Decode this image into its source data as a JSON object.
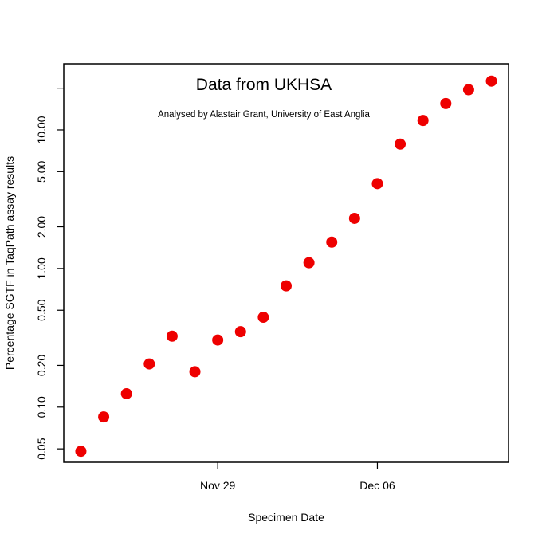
{
  "chart_data": {
    "type": "scatter",
    "title": "Data from UKHSA",
    "subtitle": "Analysed by Alastair Grant, University of East Anglia",
    "xlabel": "Specimen Date",
    "ylabel": "Percentage SGTF in TaqPath assay results",
    "y_scale": "log",
    "ylim": [
      0.04,
      30
    ],
    "xlim": [
      -0.75,
      18.75
    ],
    "x_ticks": [
      {
        "label": "Nov 29",
        "value": 6
      },
      {
        "label": "Dec 06",
        "value": 13
      }
    ],
    "y_ticks": [
      {
        "label": "0.05",
        "value": 0.05
      },
      {
        "label": "0.10",
        "value": 0.1
      },
      {
        "label": "0.20",
        "value": 0.2
      },
      {
        "label": "0.50",
        "value": 0.5
      },
      {
        "label": "1.00",
        "value": 1.0
      },
      {
        "label": "2.00",
        "value": 2.0
      },
      {
        "label": "5.00",
        "value": 5.0
      },
      {
        "label": "10.00",
        "value": 10.0
      },
      {
        "label": "",
        "value": 20.0
      }
    ],
    "series": [
      {
        "name": "SGTF",
        "color": "#ee0000",
        "x": [
          0,
          1,
          2,
          3,
          4,
          5,
          6,
          7,
          8,
          9,
          10,
          11,
          12,
          13,
          14,
          15,
          16,
          17,
          18
        ],
        "x_dates": [
          "Nov 23",
          "Nov 24",
          "Nov 25",
          "Nov 26",
          "Nov 27",
          "Nov 28",
          "Nov 29",
          "Nov 30",
          "Dec 01",
          "Dec 02",
          "Dec 03",
          "Dec 04",
          "Dec 05",
          "Dec 06",
          "Dec 07",
          "Dec 08",
          "Dec 09",
          "Dec 10",
          "Dec 11"
        ],
        "values": [
          0.048,
          0.085,
          0.125,
          0.205,
          0.325,
          0.18,
          0.305,
          0.35,
          0.445,
          0.75,
          1.1,
          1.55,
          2.3,
          4.1,
          7.9,
          11.7,
          15.5,
          19.5,
          22.5
        ]
      }
    ]
  }
}
